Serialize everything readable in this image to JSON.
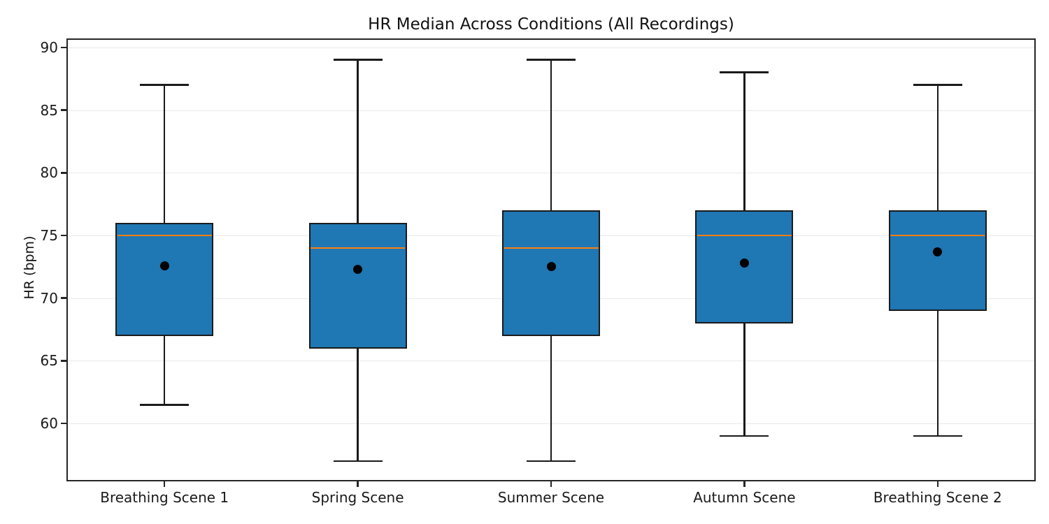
{
  "chart": {
    "title": "HR Median Across Conditions (All Recordings)",
    "ylabel": "HR (bpm)"
  },
  "chart_data": {
    "type": "boxplot",
    "title": "HR Median Across Conditions (All Recordings)",
    "xlabel": "",
    "ylabel": "HR (bpm)",
    "categories": [
      "Breathing Scene 1",
      "Spring Scene",
      "Summer Scene",
      "Autumn Scene",
      "Breathing Scene 2"
    ],
    "series": [
      {
        "name": "Breathing Scene 1",
        "whisker_low": 61.5,
        "q1": 67,
        "median": 75,
        "q3": 76,
        "whisker_high": 87,
        "mean": 72.6
      },
      {
        "name": "Spring Scene",
        "whisker_low": 57,
        "q1": 66,
        "median": 74,
        "q3": 76,
        "whisker_high": 89,
        "mean": 72.3
      },
      {
        "name": "Summer Scene",
        "whisker_low": 57,
        "q1": 67,
        "median": 74,
        "q3": 77,
        "whisker_high": 89,
        "mean": 72.5
      },
      {
        "name": "Autumn Scene",
        "whisker_low": 59,
        "q1": 68,
        "median": 75,
        "q3": 77,
        "whisker_high": 88,
        "mean": 72.8
      },
      {
        "name": "Breathing Scene 2",
        "whisker_low": 59,
        "q1": 69,
        "median": 75,
        "q3": 77,
        "whisker_high": 87,
        "mean": 73.7
      }
    ],
    "yticks": [
      60,
      65,
      70,
      75,
      80,
      85,
      90
    ],
    "ylim": [
      55.5,
      90.6
    ],
    "grid": "horizontal",
    "legend": "none",
    "colors": {
      "box_fill": "#1f77b4",
      "box_edge": "#1a1a1a",
      "median": "#ff7f0e",
      "whisker": "#1a1a1a",
      "mean_dot": "#000000",
      "grid": "#e9e9e9"
    }
  }
}
